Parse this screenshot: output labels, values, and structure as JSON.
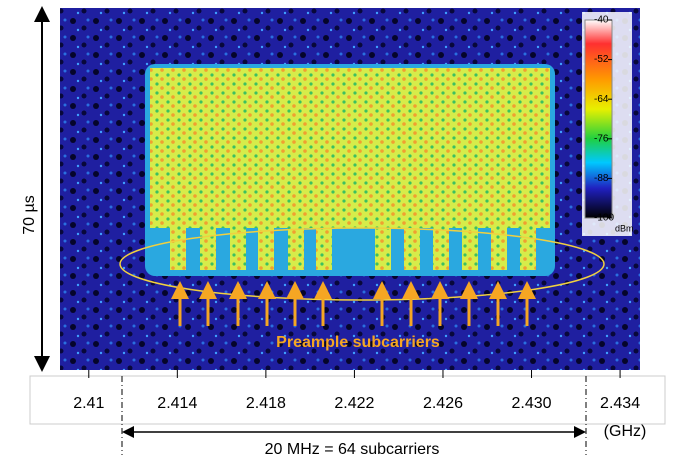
{
  "chart_data": {
    "type": "spectrogram",
    "xlim": [
      2.4087,
      2.4349
    ],
    "xticks": [
      2.41,
      2.414,
      2.418,
      2.422,
      2.426,
      {
        "value": 2.43,
        "label": "2.430"
      },
      2.434
    ],
    "x_unit": "(GHz)",
    "y_label": "70 µs",
    "colorbar": {
      "zlim": [
        -100,
        -40
      ],
      "ticks": [
        -40,
        -52,
        -64,
        -76,
        -88,
        -100
      ],
      "unit": "dBm"
    },
    "annotations": [
      "Preample subcarriers",
      "20 MHz = 64 subcarriers"
    ]
  }
}
